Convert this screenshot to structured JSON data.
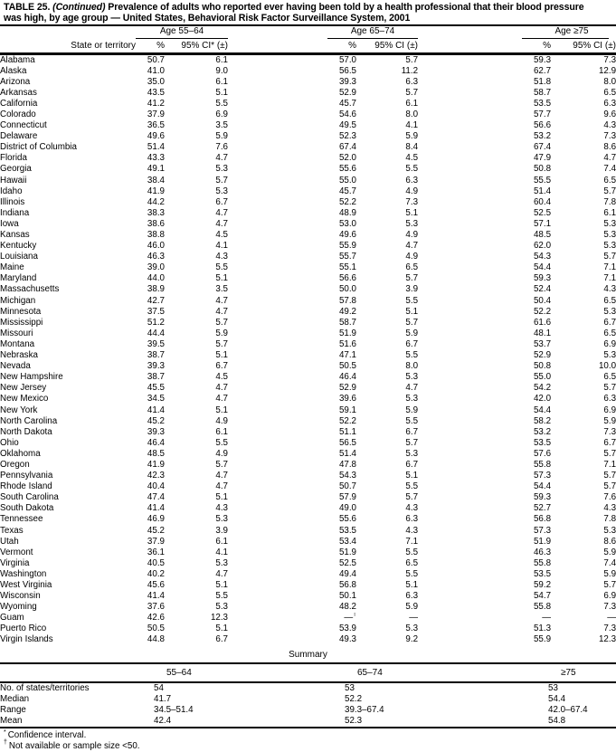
{
  "title": {
    "prefix": "TABLE 25. ",
    "continued": "(Continued)",
    "line1_rest": " Prevalence of adults who reported ever having been told by a health professional that their blood pressure",
    "line2": "was high, by age group — United States, Behavioral Risk Factor Surveillance System, 2001"
  },
  "table": {
    "row_header_label": "State or territory",
    "groups": [
      {
        "label": "Age 55–64",
        "pct_header": "%",
        "ci_header": "95% CI* (±)"
      },
      {
        "label": "Age 65–74",
        "pct_header": "%",
        "ci_header": "95% CI (±)"
      },
      {
        "label": "Age ≥75",
        "pct_header": "%",
        "ci_header": "95% CI (±)"
      }
    ],
    "rows": [
      {
        "state": "Alabama",
        "values": [
          "50.7",
          "6.1",
          "57.0",
          "5.7",
          "59.3",
          "7.3"
        ]
      },
      {
        "state": "Alaska",
        "values": [
          "41.0",
          "9.0",
          "56.5",
          "11.2",
          "62.7",
          "12.9"
        ]
      },
      {
        "state": "Arizona",
        "values": [
          "35.0",
          "6.1",
          "39.3",
          "6.3",
          "51.8",
          "8.0"
        ]
      },
      {
        "state": "Arkansas",
        "values": [
          "43.5",
          "5.1",
          "52.9",
          "5.7",
          "58.7",
          "6.5"
        ]
      },
      {
        "state": "California",
        "values": [
          "41.2",
          "5.5",
          "45.7",
          "6.1",
          "53.5",
          "6.3"
        ]
      },
      {
        "state": "Colorado",
        "values": [
          "37.9",
          "6.9",
          "54.6",
          "8.0",
          "57.7",
          "9.6"
        ]
      },
      {
        "state": "Connecticut",
        "values": [
          "36.5",
          "3.5",
          "49.5",
          "4.1",
          "56.6",
          "4.3"
        ]
      },
      {
        "state": "Delaware",
        "values": [
          "49.6",
          "5.9",
          "52.3",
          "5.9",
          "53.2",
          "7.3"
        ]
      },
      {
        "state": "District of Columbia",
        "values": [
          "51.4",
          "7.6",
          "67.4",
          "8.4",
          "67.4",
          "8.6"
        ]
      },
      {
        "state": "Florida",
        "values": [
          "43.3",
          "4.7",
          "52.0",
          "4.5",
          "47.9",
          "4.7"
        ]
      },
      {
        "state": "Georgia",
        "values": [
          "49.1",
          "5.3",
          "55.6",
          "5.5",
          "50.8",
          "7.4"
        ]
      },
      {
        "state": "Hawaii",
        "values": [
          "38.4",
          "5.7",
          "55.0",
          "6.3",
          "55.5",
          "6.5"
        ]
      },
      {
        "state": "Idaho",
        "values": [
          "41.9",
          "5.3",
          "45.7",
          "4.9",
          "51.4",
          "5.7"
        ]
      },
      {
        "state": "Illinois",
        "values": [
          "44.2",
          "6.7",
          "52.2",
          "7.3",
          "60.4",
          "7.8"
        ]
      },
      {
        "state": "Indiana",
        "values": [
          "38.3",
          "4.7",
          "48.9",
          "5.1",
          "52.5",
          "6.1"
        ]
      },
      {
        "state": "Iowa",
        "values": [
          "38.6",
          "4.7",
          "53.0",
          "5.3",
          "57.1",
          "5.3"
        ]
      },
      {
        "state": "Kansas",
        "values": [
          "38.8",
          "4.5",
          "49.6",
          "4.9",
          "48.5",
          "5.3"
        ]
      },
      {
        "state": "Kentucky",
        "values": [
          "46.0",
          "4.1",
          "55.9",
          "4.7",
          "62.0",
          "5.3"
        ]
      },
      {
        "state": "Louisiana",
        "values": [
          "46.3",
          "4.3",
          "55.7",
          "4.9",
          "54.3",
          "5.7"
        ]
      },
      {
        "state": "Maine",
        "values": [
          "39.0",
          "5.5",
          "55.1",
          "6.5",
          "54.4",
          "7.1"
        ]
      },
      {
        "state": "Maryland",
        "values": [
          "44.0",
          "5.1",
          "56.6",
          "5.7",
          "59.3",
          "7.1"
        ]
      },
      {
        "state": "Massachusetts",
        "values": [
          "38.9",
          "3.5",
          "50.0",
          "3.9",
          "52.4",
          "4.3"
        ]
      },
      {
        "state": "Michigan",
        "values": [
          "42.7",
          "4.7",
          "57.8",
          "5.5",
          "50.4",
          "6.5"
        ]
      },
      {
        "state": "Minnesota",
        "values": [
          "37.5",
          "4.7",
          "49.2",
          "5.1",
          "52.2",
          "5.3"
        ]
      },
      {
        "state": "Mississippi",
        "values": [
          "51.2",
          "5.7",
          "58.7",
          "5.7",
          "61.6",
          "6.7"
        ]
      },
      {
        "state": "Missouri",
        "values": [
          "44.4",
          "5.9",
          "51.9",
          "5.9",
          "48.1",
          "6.5"
        ]
      },
      {
        "state": "Montana",
        "values": [
          "39.5",
          "5.7",
          "51.6",
          "6.7",
          "53.7",
          "6.9"
        ]
      },
      {
        "state": "Nebraska",
        "values": [
          "38.7",
          "5.1",
          "47.1",
          "5.5",
          "52.9",
          "5.3"
        ]
      },
      {
        "state": "Nevada",
        "values": [
          "39.3",
          "6.7",
          "50.5",
          "8.0",
          "50.8",
          "10.0"
        ]
      },
      {
        "state": "New Hampshire",
        "values": [
          "38.7",
          "4.5",
          "46.4",
          "5.3",
          "55.0",
          "6.5"
        ]
      },
      {
        "state": "New Jersey",
        "values": [
          "45.5",
          "4.7",
          "52.9",
          "4.7",
          "54.2",
          "5.7"
        ]
      },
      {
        "state": "New Mexico",
        "values": [
          "34.5",
          "4.7",
          "39.6",
          "5.3",
          "42.0",
          "6.3"
        ]
      },
      {
        "state": "New York",
        "values": [
          "41.4",
          "5.1",
          "59.1",
          "5.9",
          "54.4",
          "6.9"
        ]
      },
      {
        "state": "North Carolina",
        "values": [
          "45.2",
          "4.9",
          "52.2",
          "5.5",
          "58.2",
          "5.9"
        ]
      },
      {
        "state": "North Dakota",
        "values": [
          "39.3",
          "6.1",
          "51.1",
          "6.7",
          "53.2",
          "7.3"
        ]
      },
      {
        "state": "Ohio",
        "values": [
          "46.4",
          "5.5",
          "56.5",
          "5.7",
          "53.5",
          "6.7"
        ]
      },
      {
        "state": "Oklahoma",
        "values": [
          "48.5",
          "4.9",
          "51.4",
          "5.3",
          "57.6",
          "5.7"
        ]
      },
      {
        "state": "Oregon",
        "values": [
          "41.9",
          "5.7",
          "47.8",
          "6.7",
          "55.8",
          "7.1"
        ]
      },
      {
        "state": "Pennsylvania",
        "values": [
          "42.3",
          "4.7",
          "54.3",
          "5.1",
          "57.3",
          "5.7"
        ]
      },
      {
        "state": "Rhode Island",
        "values": [
          "40.4",
          "4.7",
          "50.7",
          "5.5",
          "54.4",
          "5.7"
        ]
      },
      {
        "state": "South Carolina",
        "values": [
          "47.4",
          "5.1",
          "57.9",
          "5.7",
          "59.3",
          "7.6"
        ]
      },
      {
        "state": "South Dakota",
        "values": [
          "41.4",
          "4.3",
          "49.0",
          "4.3",
          "52.7",
          "4.3"
        ]
      },
      {
        "state": "Tennessee",
        "values": [
          "46.9",
          "5.3",
          "55.6",
          "6.3",
          "56.8",
          "7.8"
        ]
      },
      {
        "state": "Texas",
        "values": [
          "45.2",
          "3.9",
          "53.5",
          "4.3",
          "57.3",
          "5.3"
        ]
      },
      {
        "state": "Utah",
        "values": [
          "37.9",
          "6.1",
          "53.4",
          "7.1",
          "51.9",
          "8.6"
        ]
      },
      {
        "state": "Vermont",
        "values": [
          "36.1",
          "4.1",
          "51.9",
          "5.5",
          "46.3",
          "5.9"
        ]
      },
      {
        "state": "Virginia",
        "values": [
          "40.5",
          "5.3",
          "52.5",
          "6.5",
          "55.8",
          "7.4"
        ]
      },
      {
        "state": "Washington",
        "values": [
          "40.2",
          "4.7",
          "49.4",
          "5.5",
          "53.5",
          "5.9"
        ]
      },
      {
        "state": "West Virginia",
        "values": [
          "45.6",
          "5.1",
          "56.8",
          "5.1",
          "59.2",
          "5.7"
        ]
      },
      {
        "state": "Wisconsin",
        "values": [
          "41.4",
          "5.5",
          "50.1",
          "6.3",
          "54.7",
          "6.9"
        ]
      },
      {
        "state": "Wyoming",
        "values": [
          "37.6",
          "5.3",
          "48.2",
          "5.9",
          "55.8",
          "7.3"
        ]
      },
      {
        "state": "Guam",
        "values": [
          "42.6",
          "12.3",
          "—†",
          "—",
          "—",
          "—"
        ]
      },
      {
        "state": "Puerto Rico",
        "values": [
          "50.5",
          "5.1",
          "53.9",
          "5.3",
          "51.3",
          "7.3"
        ]
      },
      {
        "state": "Virgin Islands",
        "values": [
          "44.8",
          "6.7",
          "49.3",
          "9.2",
          "55.9",
          "12.3"
        ]
      }
    ]
  },
  "summary": {
    "title": "Summary",
    "columns": [
      "55–64",
      "65–74",
      "≥75"
    ],
    "rows": [
      {
        "label": "No. of states/territories",
        "values": [
          "54",
          "53",
          "53"
        ]
      },
      {
        "label": "Median",
        "values": [
          "41.7",
          "52.2",
          "54.4"
        ]
      },
      {
        "label": "Range",
        "values": [
          "34.5–51.4",
          "39.3–67.4",
          "42.0–67.4"
        ]
      },
      {
        "label": "Mean",
        "values": [
          "42.4",
          "52.3",
          "54.8"
        ]
      }
    ]
  },
  "footnotes": [
    {
      "marker": "*",
      "text": "Confidence interval."
    },
    {
      "marker": "†",
      "text": "Not available or sample size <50."
    }
  ]
}
